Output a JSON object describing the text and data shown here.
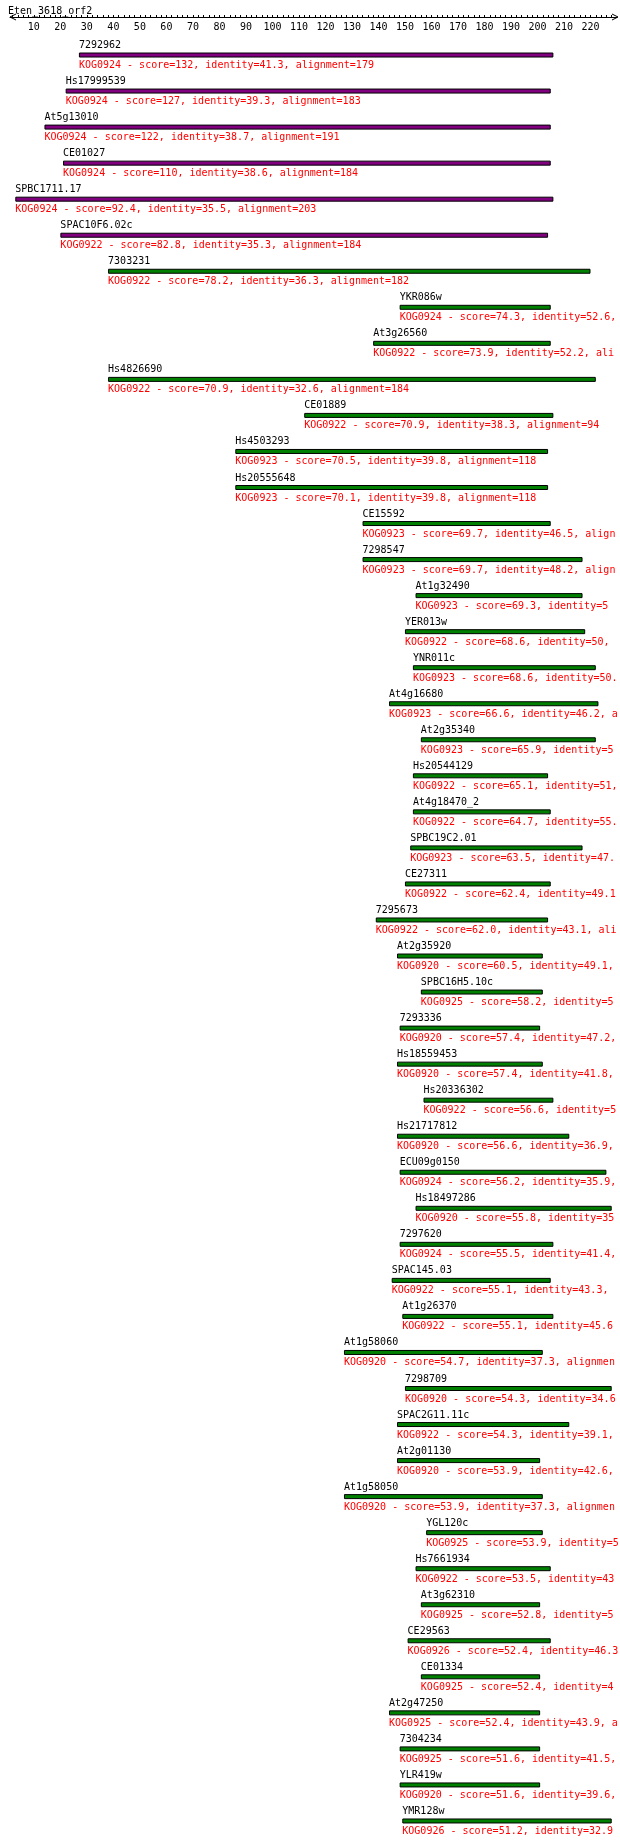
{
  "chart_data": {
    "type": "bar",
    "orientation": "horizontal",
    "title": "Eten_3618_orf2",
    "categories": [
      "7292962",
      "Hs17999539",
      "At5g13010",
      "CE01027",
      "SPBC1711.17",
      "SPAC10F6.02c",
      "7303231",
      "YKR086w",
      "At3g26560",
      "Hs4826690",
      "CE01889",
      "Hs4503293",
      "Hs20555648",
      "CE15592",
      "7298547",
      "At1g32490",
      "YER013w",
      "YNR011c",
      "At4g16680",
      "At2g35340",
      "Hs20544129",
      "At4g18470_2",
      "SPBC19C2.01",
      "CE27311",
      "7295673",
      "At2g35920",
      "SPBC16H5.10c",
      "7293336",
      "Hs18559453",
      "Hs20336302",
      "Hs21717812",
      "ECU09g0150",
      "Hs18497286",
      "7297620",
      "SPAC145.03",
      "At1g26370",
      "At1g58060",
      "7298709",
      "SPAC2G11.11c",
      "At2g01130",
      "At1g58050",
      "YGL120c",
      "Hs7661934",
      "At3g62310",
      "CE29563",
      "CE01334",
      "At2g47250",
      "7304234",
      "YLR419w",
      "YMR128w"
    ],
    "base": [
      27,
      22,
      14,
      21,
      3,
      20,
      38,
      148,
      138,
      38,
      112,
      86,
      86,
      134,
      134,
      154,
      150,
      153,
      144,
      156,
      153,
      153,
      152,
      150,
      139,
      147,
      156,
      148,
      147,
      157,
      147,
      148,
      154,
      148,
      145,
      149,
      127,
      150,
      147,
      147,
      127,
      158,
      154,
      156,
      151,
      156,
      144,
      148,
      148,
      149
    ],
    "values": [
      179,
      183,
      191,
      184,
      203,
      184,
      182,
      57,
      67,
      184,
      94,
      118,
      118,
      71,
      83,
      63,
      68,
      69,
      79,
      66,
      51,
      52,
      65,
      55,
      65,
      55,
      46,
      53,
      55,
      49,
      65,
      78,
      74,
      58,
      60,
      57,
      75,
      78,
      65,
      54,
      75,
      44,
      51,
      45,
      54,
      45,
      57,
      53,
      53,
      79
    ],
    "colors": [
      "#800080",
      "#800080",
      "#800080",
      "#800080",
      "#800080",
      "#800080",
      "#008000",
      "#008000",
      "#008000",
      "#008000",
      "#008000",
      "#008000",
      "#008000",
      "#008000",
      "#008000",
      "#008000",
      "#008000",
      "#008000",
      "#008000",
      "#008000",
      "#008000",
      "#008000",
      "#008000",
      "#008000",
      "#008000",
      "#008000",
      "#008000",
      "#008000",
      "#008000",
      "#008000",
      "#008000",
      "#008000",
      "#008000",
      "#008000",
      "#008000",
      "#008000",
      "#008000",
      "#008000",
      "#008000",
      "#008000",
      "#008000",
      "#008000",
      "#008000",
      "#008000",
      "#008000",
      "#008000",
      "#008000",
      "#008000",
      "#008000",
      "#008000"
    ],
    "xlim": [
      1,
      230
    ],
    "xticks": [
      {
        "value": 2,
        "label": null
      },
      {
        "value": 4,
        "label": null
      },
      {
        "value": 6,
        "label": null
      },
      {
        "value": 8,
        "label": null
      },
      10,
      {
        "value": 12,
        "label": null
      },
      {
        "value": 14,
        "label": null
      },
      {
        "value": 16,
        "label": null
      },
      {
        "value": 18,
        "label": null
      },
      20,
      {
        "value": 22,
        "label": null
      },
      {
        "value": 24,
        "label": null
      },
      {
        "value": 26,
        "label": null
      },
      {
        "value": 28,
        "label": null
      },
      30,
      {
        "value": 32,
        "label": null
      },
      {
        "value": 34,
        "label": null
      },
      {
        "value": 36,
        "label": null
      },
      {
        "value": 38,
        "label": null
      },
      40,
      {
        "value": 42,
        "label": null
      },
      {
        "value": 44,
        "label": null
      },
      {
        "value": 46,
        "label": null
      },
      {
        "value": 48,
        "label": null
      },
      50,
      {
        "value": 52,
        "label": null
      },
      {
        "value": 54,
        "label": null
      },
      {
        "value": 56,
        "label": null
      },
      {
        "value": 58,
        "label": null
      },
      60,
      {
        "value": 62,
        "label": null
      },
      {
        "value": 64,
        "label": null
      },
      {
        "value": 66,
        "label": null
      },
      {
        "value": 68,
        "label": null
      },
      70,
      {
        "value": 72,
        "label": null
      },
      {
        "value": 74,
        "label": null
      },
      {
        "value": 76,
        "label": null
      },
      {
        "value": 78,
        "label": null
      },
      80,
      {
        "value": 82,
        "label": null
      },
      {
        "value": 84,
        "label": null
      },
      {
        "value": 86,
        "label": null
      },
      {
        "value": 88,
        "label": null
      },
      90,
      {
        "value": 92,
        "label": null
      },
      {
        "value": 94,
        "label": null
      },
      {
        "value": 96,
        "label": null
      },
      {
        "value": 98,
        "label": null
      },
      100,
      {
        "value": 102,
        "label": null
      },
      {
        "value": 104,
        "label": null
      },
      {
        "value": 106,
        "label": null
      },
      {
        "value": 108,
        "label": null
      },
      110,
      {
        "value": 112,
        "label": null
      },
      {
        "value": 114,
        "label": null
      },
      {
        "value": 116,
        "label": null
      },
      {
        "value": 118,
        "label": null
      },
      120,
      {
        "value": 122,
        "label": null
      },
      {
        "value": 124,
        "label": null
      },
      {
        "value": 126,
        "label": null
      },
      {
        "value": 128,
        "label": null
      },
      130,
      {
        "value": 132,
        "label": null
      },
      {
        "value": 134,
        "label": null
      },
      {
        "value": 136,
        "label": null
      },
      {
        "value": 138,
        "label": null
      },
      140,
      {
        "value": 142,
        "label": null
      },
      {
        "value": 144,
        "label": null
      },
      {
        "value": 146,
        "label": null
      },
      {
        "value": 148,
        "label": null
      },
      150,
      {
        "value": 152,
        "label": null
      },
      {
        "value": 154,
        "label": null
      },
      {
        "value": 156,
        "label": null
      },
      {
        "value": 158,
        "label": null
      },
      160,
      {
        "value": 162,
        "label": null
      },
      {
        "value": 164,
        "label": null
      },
      {
        "value": 166,
        "label": null
      },
      {
        "value": 168,
        "label": null
      },
      170,
      {
        "value": 172,
        "label": null
      },
      {
        "value": 174,
        "label": null
      },
      {
        "value": 176,
        "label": null
      },
      {
        "value": 178,
        "label": null
      },
      180,
      {
        "value": 182,
        "label": null
      },
      {
        "value": 184,
        "label": null
      },
      {
        "value": 186,
        "label": null
      },
      {
        "value": 188,
        "label": null
      },
      190,
      {
        "value": 192,
        "label": null
      },
      {
        "value": 194,
        "label": null
      },
      {
        "value": 196,
        "label": null
      },
      {
        "value": 198,
        "label": null
      },
      200,
      {
        "value": 202,
        "label": null
      },
      {
        "value": 204,
        "label": null
      },
      {
        "value": 206,
        "label": null
      },
      {
        "value": 208,
        "label": null
      },
      210,
      {
        "value": 212,
        "label": null
      },
      {
        "value": 214,
        "label": null
      },
      {
        "value": 216,
        "label": null
      },
      {
        "value": 218,
        "label": null
      },
      220,
      {
        "value": 222,
        "label": null
      },
      {
        "value": 224,
        "label": null
      },
      {
        "value": 226,
        "label": null
      },
      {
        "value": 228,
        "label": null
      }
    ],
    "tick_labels": "x",
    "grid": false,
    "annotations": [
      "KOG0924 - score=132, identity=41.3, alignment=179",
      "KOG0924 - score=127, identity=39.3, alignment=183",
      "KOG0924 - score=122, identity=38.7, alignment=191",
      "KOG0924 - score=110, identity=38.6, alignment=184",
      "KOG0924 - score=92.4, identity=35.5, alignment=203",
      "KOG0922 - score=82.8, identity=35.3, alignment=184",
      "KOG0922 - score=78.2, identity=36.3, alignment=182",
      "KOG0924 - score=74.3, identity=52.6,",
      "KOG0922 - score=73.9, identity=52.2, ali",
      "KOG0922 - score=70.9, identity=32.6, alignment=184",
      "KOG0922 - score=70.9, identity=38.3, alignment=94",
      "KOG0923 - score=70.5, identity=39.8, alignment=118",
      "KOG0923 - score=70.1, identity=39.8, alignment=118",
      "KOG0923 - score=69.7, identity=46.5, align",
      "KOG0923 - score=69.7, identity=48.2, align",
      "KOG0923 - score=69.3, identity=5",
      "KOG0922 - score=68.6, identity=50,",
      "KOG0923 - score=68.6, identity=50.",
      "KOG0923 - score=66.6, identity=46.2, a",
      "KOG0923 - score=65.9, identity=5",
      "KOG0922 - score=65.1, identity=51,",
      "KOG0922 - score=64.7, identity=55.",
      "KOG0923 - score=63.5, identity=47.",
      "KOG0922 - score=62.4, identity=49.1",
      "KOG0922 - score=62.0, identity=43.1, ali",
      "KOG0920 - score=60.5, identity=49.1,",
      "KOG0925 - score=58.2, identity=5",
      "KOG0920 - score=57.4, identity=47.2,",
      "KOG0920 - score=57.4, identity=41.8,",
      "KOG0922 - score=56.6, identity=5",
      "KOG0920 - score=56.6, identity=36.9,",
      "KOG0924 - score=56.2, identity=35.9,",
      "KOG0920 - score=55.8, identity=35",
      "KOG0924 - score=55.5, identity=41.4,",
      "KOG0922 - score=55.1, identity=43.3,",
      "KOG0922 - score=55.1, identity=45.6",
      "KOG0920 - score=54.7, identity=37.3, alignmen",
      "KOG0920 - score=54.3, identity=34.6",
      "KOG0922 - score=54.3, identity=39.1,",
      "KOG0920 - score=53.9, identity=42.6,",
      "KOG0920 - score=53.9, identity=37.3, alignmen",
      "KOG0925 - score=53.9, identity=5",
      "KOG0922 - score=53.5, identity=43",
      "KOG0925 - score=52.8, identity=5",
      "KOG0926 - score=52.4, identity=46.3",
      "KOG0925 - score=52.4, identity=4",
      "KOG0925 - score=52.4, identity=43.9, a",
      "KOG0925 - score=51.6, identity=41.5,",
      "KOG0920 - score=51.6, identity=39.6,",
      "KOG0926 - score=51.2, identity=32.9"
    ]
  }
}
